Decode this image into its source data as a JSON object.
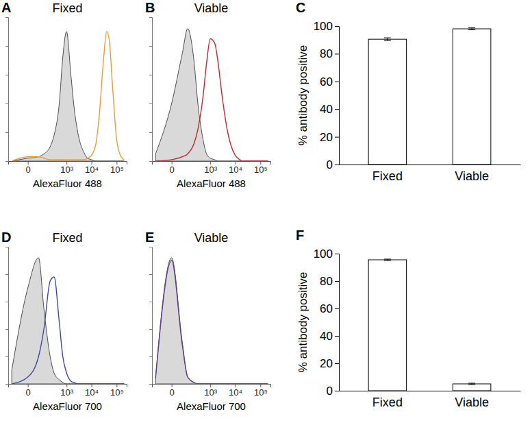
{
  "chart_data": [
    {
      "type": "line",
      "panel": "A",
      "title": "Fixed",
      "x_label": "AlexaFluor 488",
      "log": "x",
      "tick_labels": "x",
      "x": [
        -100,
        0,
        50,
        100,
        200,
        300,
        500,
        700,
        1000,
        1500,
        2000,
        3000,
        5000,
        7000,
        10000,
        15000,
        20000,
        30000,
        40000,
        50000,
        70000,
        100000,
        150000,
        200000
      ],
      "xlim": [
        -150,
        250000
      ],
      "xticks": [
        0,
        {
          "value": 1000,
          "label": "10³"
        },
        {
          "value": 10000,
          "label": "10⁴"
        },
        {
          "value": 100000,
          "label": "10⁵"
        }
      ],
      "ylim": [
        0,
        100
      ],
      "yticks": [
        0,
        20,
        40,
        60,
        80,
        100
      ],
      "series": [
        {
          "type": "area",
          "color": "#d9d9d9",
          "values": [
            0,
            2,
            3,
            5,
            10,
            18,
            40,
            72,
            90,
            60,
            38,
            18,
            6,
            2,
            1,
            0,
            0,
            0,
            0,
            0,
            0,
            0,
            0,
            0
          ]
        },
        {
          "type": "line",
          "color": "#ee9a3a",
          "values": [
            0,
            3,
            3,
            2,
            1,
            1,
            1,
            1,
            1,
            1,
            1,
            1,
            1,
            2,
            4,
            12,
            30,
            70,
            90,
            85,
            50,
            15,
            3,
            1
          ]
        }
      ]
    },
    {
      "type": "line",
      "panel": "B",
      "title": "Viable",
      "x_label": "AlexaFluor 488",
      "log": "x",
      "tick_labels": "x",
      "x": [
        -100,
        0,
        50,
        100,
        200,
        300,
        500,
        700,
        1000,
        1500,
        2000,
        3000,
        5000,
        7000,
        10000,
        15000,
        20000,
        30000,
        40000,
        50000,
        70000,
        100000,
        150000,
        200000
      ],
      "xlim": [
        -150,
        250000
      ],
      "xticks": [
        0,
        {
          "value": 1000,
          "label": "10³"
        },
        {
          "value": 10000,
          "label": "10⁴"
        },
        {
          "value": 100000,
          "label": "10⁵"
        }
      ],
      "ylim": [
        0,
        100
      ],
      "yticks": [
        0,
        20,
        40,
        60,
        80,
        100
      ],
      "series": [
        {
          "type": "area",
          "color": "#d9d9d9",
          "values": [
            5,
            40,
            75,
            92,
            70,
            40,
            15,
            5,
            2,
            1,
            0,
            0,
            0,
            0,
            0,
            0,
            0,
            0,
            0,
            0,
            0,
            0,
            0,
            0
          ]
        },
        {
          "type": "line",
          "color": "#c0282d",
          "values": [
            0,
            1,
            3,
            5,
            12,
            22,
            45,
            68,
            85,
            82,
            70,
            45,
            20,
            10,
            4,
            1,
            0,
            0,
            0,
            0,
            0,
            0,
            0,
            0
          ]
        }
      ]
    },
    {
      "type": "bar",
      "panel": "C",
      "y_label": "% antibody positive",
      "categories": [
        "Fixed",
        "Viable"
      ],
      "values": [
        90.5,
        98
      ],
      "errors": [
        1,
        0.7
      ],
      "color": "#ffffff",
      "ylim": [
        0,
        100
      ],
      "yticks": [
        0,
        20,
        40,
        60,
        80,
        100
      ]
    },
    {
      "type": "line",
      "panel": "D",
      "title": "Fixed",
      "x_label": "AlexaFluor 700",
      "log": "x",
      "tick_labels": "x",
      "x": [
        -100,
        0,
        50,
        100,
        200,
        300,
        500,
        700,
        1000,
        1500,
        2000,
        3000,
        5000,
        7000,
        10000,
        15000,
        20000,
        30000,
        40000,
        50000,
        70000,
        100000,
        150000,
        200000
      ],
      "xlim": [
        -150,
        250000
      ],
      "xticks": [
        0,
        {
          "value": 1000,
          "label": "10³"
        },
        {
          "value": 10000,
          "label": "10⁴"
        },
        {
          "value": 100000,
          "label": "10⁵"
        }
      ],
      "ylim": [
        0,
        100
      ],
      "yticks": [
        0,
        20,
        40,
        60,
        80,
        100
      ],
      "series": [
        {
          "type": "area",
          "color": "#d9d9d9",
          "values": [
            10,
            70,
            92,
            55,
            20,
            8,
            3,
            1,
            0,
            0,
            0,
            0,
            0,
            0,
            0,
            0,
            0,
            0,
            0,
            0,
            0,
            0,
            0,
            0
          ]
        },
        {
          "type": "line",
          "color": "#3b4a9e",
          "values": [
            0,
            5,
            20,
            40,
            75,
            78,
            45,
            20,
            8,
            2,
            1,
            0,
            0,
            0,
            0,
            0,
            0,
            0,
            0,
            0,
            0,
            0,
            0,
            0
          ]
        }
      ]
    },
    {
      "type": "line",
      "panel": "E",
      "title": "Viable",
      "x_label": "AlexaFluor 700",
      "log": "x",
      "tick_labels": "x",
      "x": [
        -100,
        0,
        50,
        100,
        200,
        300,
        500,
        700,
        1000,
        1500,
        2000,
        3000,
        5000,
        7000,
        10000,
        15000,
        20000,
        30000,
        40000,
        50000,
        70000,
        100000,
        150000,
        200000
      ],
      "xlim": [
        -150,
        250000
      ],
      "xticks": [
        0,
        {
          "value": 1000,
          "label": "10³"
        },
        {
          "value": 10000,
          "label": "10⁴"
        },
        {
          "value": 100000,
          "label": "10⁵"
        }
      ],
      "ylim": [
        0,
        100
      ],
      "yticks": [
        0,
        20,
        40,
        60,
        80,
        100
      ],
      "series": [
        {
          "type": "area",
          "color": "#d9d9d9",
          "values": [
            5,
            92,
            30,
            5,
            1,
            0,
            0,
            0,
            0,
            0,
            0,
            0,
            0,
            0,
            0,
            0,
            0,
            0,
            0,
            0,
            0,
            0,
            0,
            0
          ]
        },
        {
          "type": "line",
          "color": "#5e3f8c",
          "values": [
            4,
            90,
            28,
            5,
            1,
            0,
            0,
            0,
            0,
            0,
            0,
            0,
            0,
            0,
            0,
            0,
            0,
            0,
            0,
            0,
            0,
            0,
            0,
            0
          ]
        }
      ]
    },
    {
      "type": "bar",
      "panel": "F",
      "y_label": "% antibody positive",
      "categories": [
        "Fixed",
        "Viable"
      ],
      "values": [
        95.5,
        5
      ],
      "errors": [
        0.5,
        0.5
      ],
      "color": "#ffffff",
      "ylim": [
        0,
        100
      ],
      "yticks": [
        0,
        20,
        40,
        60,
        80,
        100
      ]
    }
  ]
}
